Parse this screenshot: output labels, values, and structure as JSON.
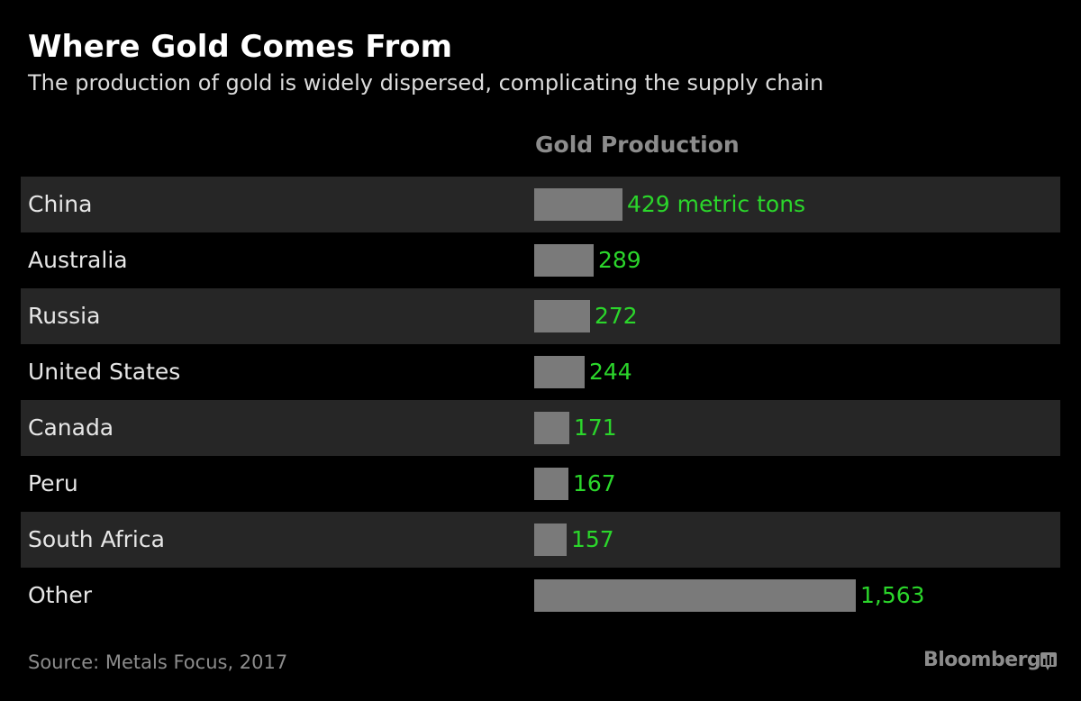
{
  "header": {
    "title": "Where Gold Comes From",
    "subtitle": "The production of gold is widely dispersed, complicating the supply chain"
  },
  "footer": {
    "source": "Source: Metals Focus, 2017",
    "brand": "Bloomberg",
    "brand_icon": "bloomberg-chart-icon"
  },
  "colors": {
    "background": "#000000",
    "row_shade": "#262626",
    "bar": "#7a7a7a",
    "value_text": "#2bd62b",
    "header_text": "#8c8c8c"
  },
  "chart_data": {
    "type": "bar",
    "orientation": "horizontal",
    "column_header": "Gold Production",
    "unit": "metric tons",
    "categories": [
      "China",
      "Australia",
      "Russia",
      "United States",
      "Canada",
      "Peru",
      "South Africa",
      "Other"
    ],
    "values": [
      429,
      289,
      272,
      244,
      171,
      167,
      157,
      1563
    ],
    "value_labels": [
      "429 metric tons",
      "289",
      "272",
      "244",
      "171",
      "167",
      "157",
      "1,563"
    ],
    "xlim": [
      0,
      1563
    ],
    "grid": false,
    "legend": "none"
  }
}
